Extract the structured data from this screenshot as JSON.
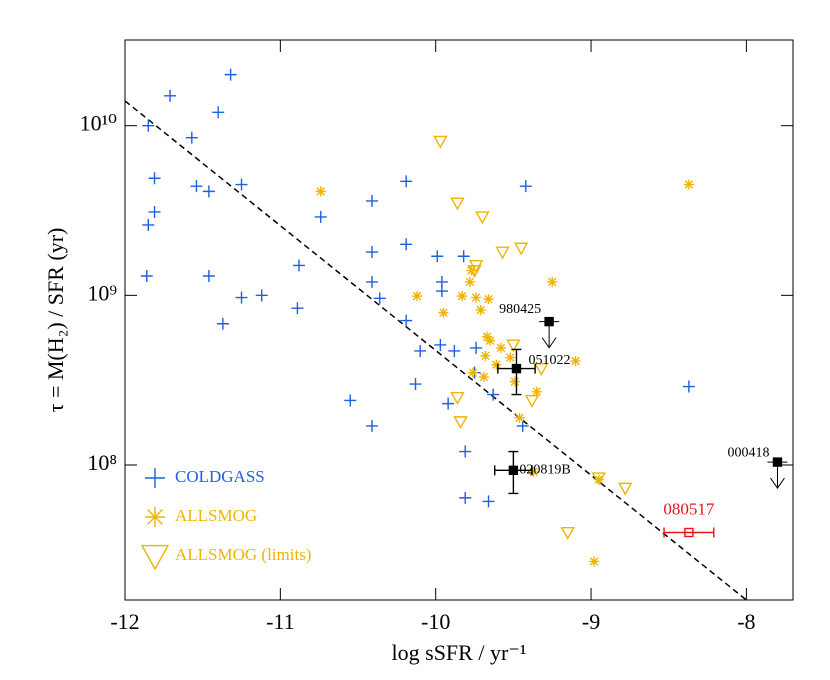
{
  "chart_data": {
    "type": "scatter",
    "xlabel": "log sSFR / yr⁻¹",
    "ylabel": "τ = M(H₂) / SFR (yr)",
    "xlim": [
      -12,
      -7.7
    ],
    "ylim": [
      16000000.0,
      32000000000.0
    ],
    "log_y": true,
    "xticks": [
      -12,
      -11,
      -10,
      -9,
      -8
    ],
    "yticks": [
      {
        "value": 100000000.0,
        "label": "10⁸"
      },
      {
        "value": 1000000000.0,
        "label": "10⁹"
      },
      {
        "value": 10000000000.0,
        "label": "10¹⁰"
      }
    ],
    "legend": "lower left",
    "series": [
      {
        "name": "COLDGASS",
        "color": "#1f5fe0",
        "marker": "plus",
        "x": [
          -11.32,
          -11.71,
          -11.85,
          -11.4,
          -11.57,
          -11.81,
          -11.54,
          -11.46,
          -11.25,
          -11.81,
          -11.85,
          -11.86,
          -11.46,
          -11.25,
          -11.12,
          -11.37,
          -10.88,
          -10.89,
          -10.74,
          -10.41,
          -10.41,
          -10.41,
          -10.36,
          -10.19,
          -10.19,
          -10.19,
          -9.99,
          -9.96,
          -9.96,
          -9.97,
          -10.1,
          -9.88,
          -9.82,
          -9.42,
          -9.75,
          -9.74,
          -10.13,
          -9.92,
          -9.63,
          -9.44,
          -10.55,
          -10.41,
          -9.81,
          -9.81,
          -9.66,
          -8.37
        ],
        "values": [
          20000000000.0,
          15000000000.0,
          10000000000.0,
          12000000000.0,
          8500000000.0,
          4900000000.0,
          4400000000.0,
          4100000000.0,
          4500000000.0,
          3100000000.0,
          2600000000.0,
          1300000000.0,
          1300000000.0,
          970000000.0,
          1000000000.0,
          680000000.0,
          1500000000.0,
          840000000.0,
          2900000000.0,
          3600000000.0,
          1800000000.0,
          1200000000.0,
          960000000.0,
          4700000000.0,
          2000000000.0,
          710000000.0,
          1700000000.0,
          1200000000.0,
          1060000000.0,
          510000000.0,
          470000000.0,
          470000000.0,
          1700000000.0,
          4400000000.0,
          350000000.0,
          490000000.0,
          300000000.0,
          230000000.0,
          260000000.0,
          170000000.0,
          240000000.0,
          170000000.0,
          120000000.0,
          64000000.0,
          61000000.0,
          290000000.0
        ]
      },
      {
        "name": "ALLSMOG",
        "color": "#f0b400",
        "marker": "star",
        "x": [
          -10.74,
          -8.37,
          -9.77,
          -9.78,
          -9.25,
          -10.12,
          -9.95,
          -9.83,
          -9.74,
          -9.66,
          -9.71,
          -9.67,
          -9.65,
          -9.58,
          -9.68,
          -9.52,
          -9.76,
          -9.69,
          -9.61,
          -9.49,
          -9.46,
          -9.35,
          -9.1,
          -9.37,
          -8.95,
          -8.98
        ],
        "values": [
          4100000000.0,
          4500000000.0,
          1400000000.0,
          1200000000.0,
          1200000000.0,
          990000000.0,
          790000000.0,
          990000000.0,
          970000000.0,
          950000000.0,
          820000000.0,
          570000000.0,
          540000000.0,
          490000000.0,
          440000000.0,
          430000000.0,
          350000000.0,
          330000000.0,
          390000000.0,
          310000000.0,
          190000000.0,
          270000000.0,
          410000000.0,
          91000000.0,
          82000000.0,
          27000000.0
        ]
      },
      {
        "name": "ALLSMOG (limits)",
        "color": "#f0b400",
        "marker": "triangle",
        "x": [
          -9.97,
          -9.86,
          -9.7,
          -9.45,
          -9.57,
          -9.74,
          -9.75,
          -9.5,
          -9.32,
          -9.38,
          -9.86,
          -9.84,
          -8.95,
          -8.78,
          -9.15
        ],
        "values": [
          8100000000.0,
          3500000000.0,
          2900000000.0,
          1900000000.0,
          1800000000.0,
          1500000000.0,
          1400000000.0,
          510000000.0,
          370000000.0,
          240000000.0,
          250000000.0,
          180000000.0,
          84000000.0,
          73000000.0,
          40000000.0
        ]
      }
    ],
    "fit": {
      "color": "#000000",
      "x": [
        -12,
        -8
      ],
      "values": [
        14000000000.0,
        16000000.0
      ]
    },
    "grbs": [
      {
        "name": "980425",
        "color": "#000000",
        "x": -9.27,
        "y": 700000000.0,
        "upper_limit": true
      },
      {
        "name": "051022",
        "color": "#000000",
        "x": -9.48,
        "y": 370000000.0,
        "xerr": 0.12,
        "y_low": 260000000.0,
        "y_high": 480000000.0
      },
      {
        "name": "020819B",
        "color": "#000000",
        "x": -9.5,
        "y": 93000000.0,
        "xerr": 0.12,
        "y_low": 68000000.0,
        "y_high": 120000000.0
      },
      {
        "name": "000418",
        "color": "#000000",
        "x": -7.8,
        "y": 104000000.0,
        "upper_limit": true
      },
      {
        "name": "080517",
        "color": "#e8141c",
        "x": -8.37,
        "y": 40000000.0,
        "xerr": 0.16,
        "open": true
      }
    ]
  }
}
